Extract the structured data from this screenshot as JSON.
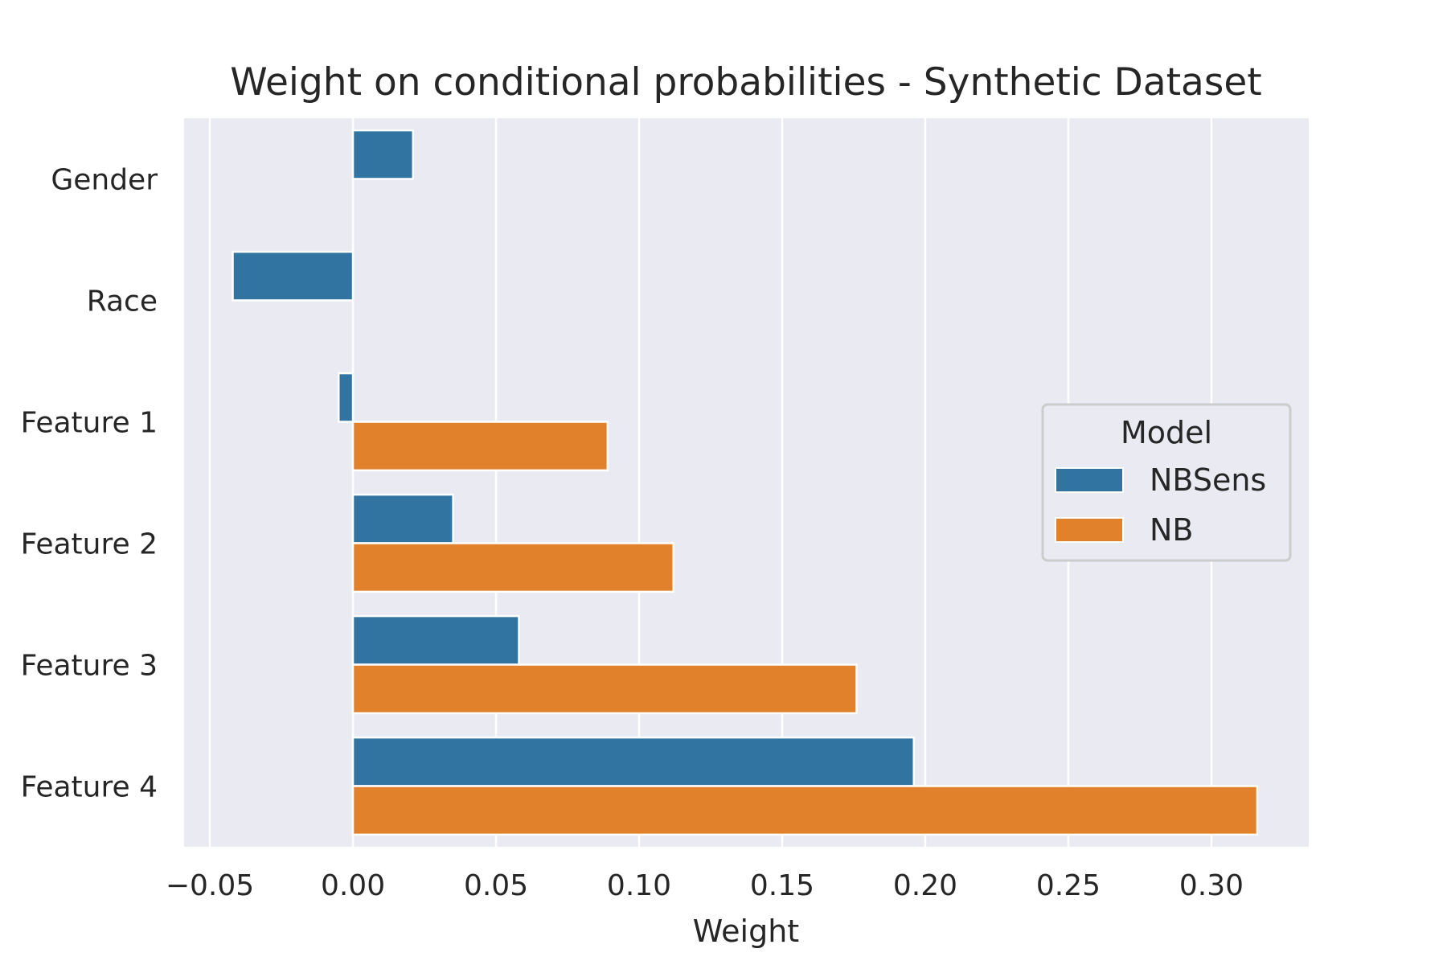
{
  "chart_data": {
    "type": "bar",
    "orientation": "horizontal",
    "title": "Weight on conditional probabilities - Synthetic Dataset",
    "xlabel": "Weight",
    "ylabel": "",
    "categories": [
      "Gender",
      "Race",
      "Feature 1",
      "Feature 2",
      "Feature 3",
      "Feature 4"
    ],
    "series": [
      {
        "name": "NBSens",
        "color": "#3274a1",
        "values": [
          0.021,
          -0.042,
          -0.005,
          0.035,
          0.058,
          0.196
        ]
      },
      {
        "name": "NB",
        "color": "#e1812c",
        "values": [
          null,
          null,
          0.089,
          0.112,
          0.176,
          0.316
        ]
      }
    ],
    "xlim": [
      -0.059,
      0.334
    ],
    "xticks": [
      -0.05,
      0.0,
      0.05,
      0.1,
      0.15,
      0.2,
      0.25,
      0.3
    ],
    "xtick_labels": [
      "−0.05",
      "0.00",
      "0.05",
      "0.10",
      "0.15",
      "0.20",
      "0.25",
      "0.30"
    ],
    "grid": true,
    "legend": {
      "title": "Model",
      "placement": "center-right"
    },
    "background": "#eaeaf2"
  }
}
